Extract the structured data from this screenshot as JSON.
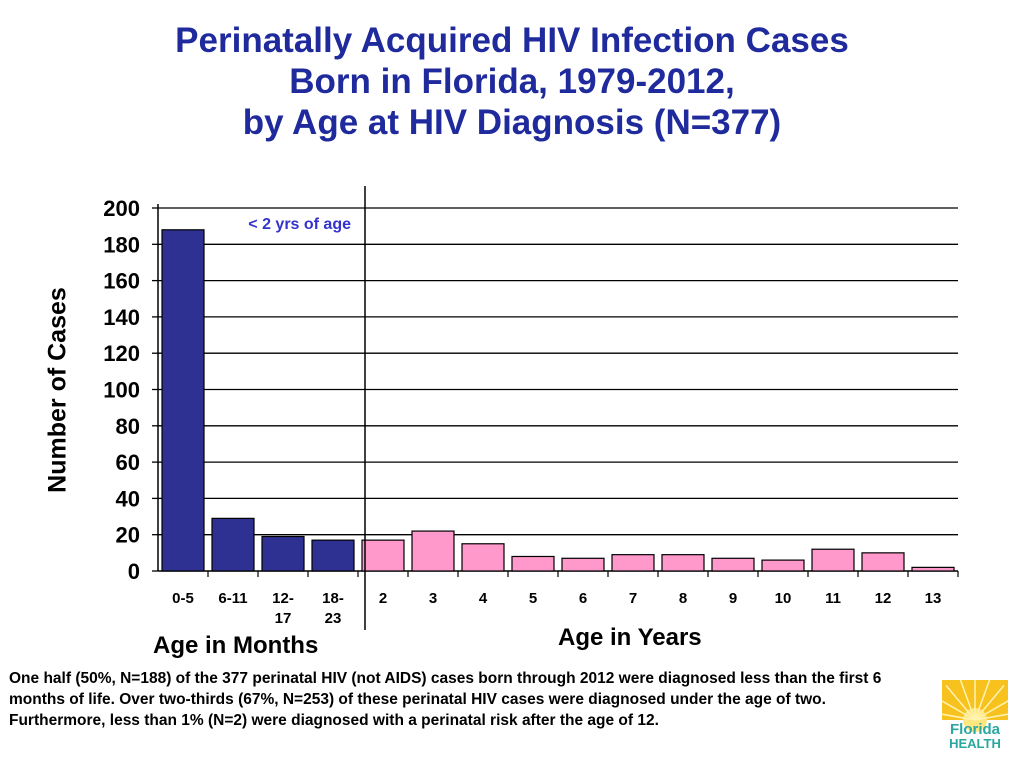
{
  "title_lines": [
    "Perinatally Acquired HIV Infection Cases",
    "Born in Florida, 1979-2012,",
    "by Age at HIV Diagnosis (N=377)"
  ],
  "chart_data": {
    "type": "bar",
    "categories": [
      "0-5",
      "6-11",
      "12-17",
      "18-23",
      "2",
      "3",
      "4",
      "5",
      "6",
      "7",
      "8",
      "9",
      "10",
      "11",
      "12",
      "13"
    ],
    "category_labels": [
      [
        "0-5"
      ],
      [
        "6-11"
      ],
      [
        "12-",
        "17"
      ],
      [
        "18-",
        "23"
      ],
      [
        "2"
      ],
      [
        "3"
      ],
      [
        "4"
      ],
      [
        "5"
      ],
      [
        "6"
      ],
      [
        "7"
      ],
      [
        "8"
      ],
      [
        "9"
      ],
      [
        "10"
      ],
      [
        "11"
      ],
      [
        "12"
      ],
      [
        "13"
      ]
    ],
    "values": [
      188,
      29,
      19,
      17,
      17,
      22,
      15,
      8,
      7,
      9,
      9,
      7,
      6,
      12,
      10,
      2
    ],
    "groups": [
      {
        "label": "Age in Months",
        "start": 0,
        "end": 3,
        "color": "#2e3192"
      },
      {
        "label": "Age in Years",
        "start": 4,
        "end": 15,
        "color": "#ff99cc"
      }
    ],
    "ylabel": "Number of Cases",
    "yticks": [
      0,
      20,
      40,
      60,
      80,
      100,
      120,
      140,
      160,
      180,
      200
    ],
    "ylim": [
      0,
      200
    ],
    "grid": true,
    "annotation": "< 2 yrs of age",
    "annotation_color": "#3333cc",
    "divider_after_index": 3
  },
  "note": "One half (50%, N=188) of the 377 perinatal HIV (not AIDS) cases born through 2012 were diagnosed less than the first 6 months of life.  Over two-thirds (67%, N=253) of these perinatal HIV cases were diagnosed under the age of two.  Furthermore, less than 1% (N=2) were diagnosed with a perinatal risk after the age of 12.",
  "logo": {
    "line1": "Florida",
    "line2": "HEALTH",
    "sun_color": "#f7c21e",
    "text_color": "#2aa7a0"
  }
}
